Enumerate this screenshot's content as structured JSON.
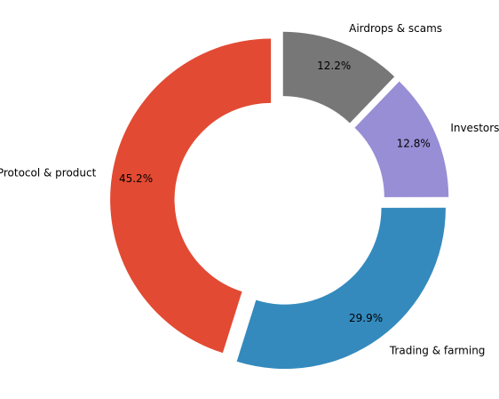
{
  "chart_data": {
    "type": "donut",
    "start_angle_deg": 90,
    "direction": "counterclockwise",
    "hole_ratio": 0.6,
    "slices": [
      {
        "label": "Protocol & product",
        "value": 45.2,
        "pct_label": "45.2%",
        "color": "#e24a33"
      },
      {
        "label": "Trading & farming",
        "value": 29.9,
        "pct_label": "29.9%",
        "color": "#348abd"
      },
      {
        "label": "Investors",
        "value": 12.8,
        "pct_label": "12.8%",
        "color": "#988ed5"
      },
      {
        "label": "Airdrops & scams",
        "value": 12.2,
        "pct_label": "12.2%",
        "color": "#777777"
      }
    ]
  }
}
